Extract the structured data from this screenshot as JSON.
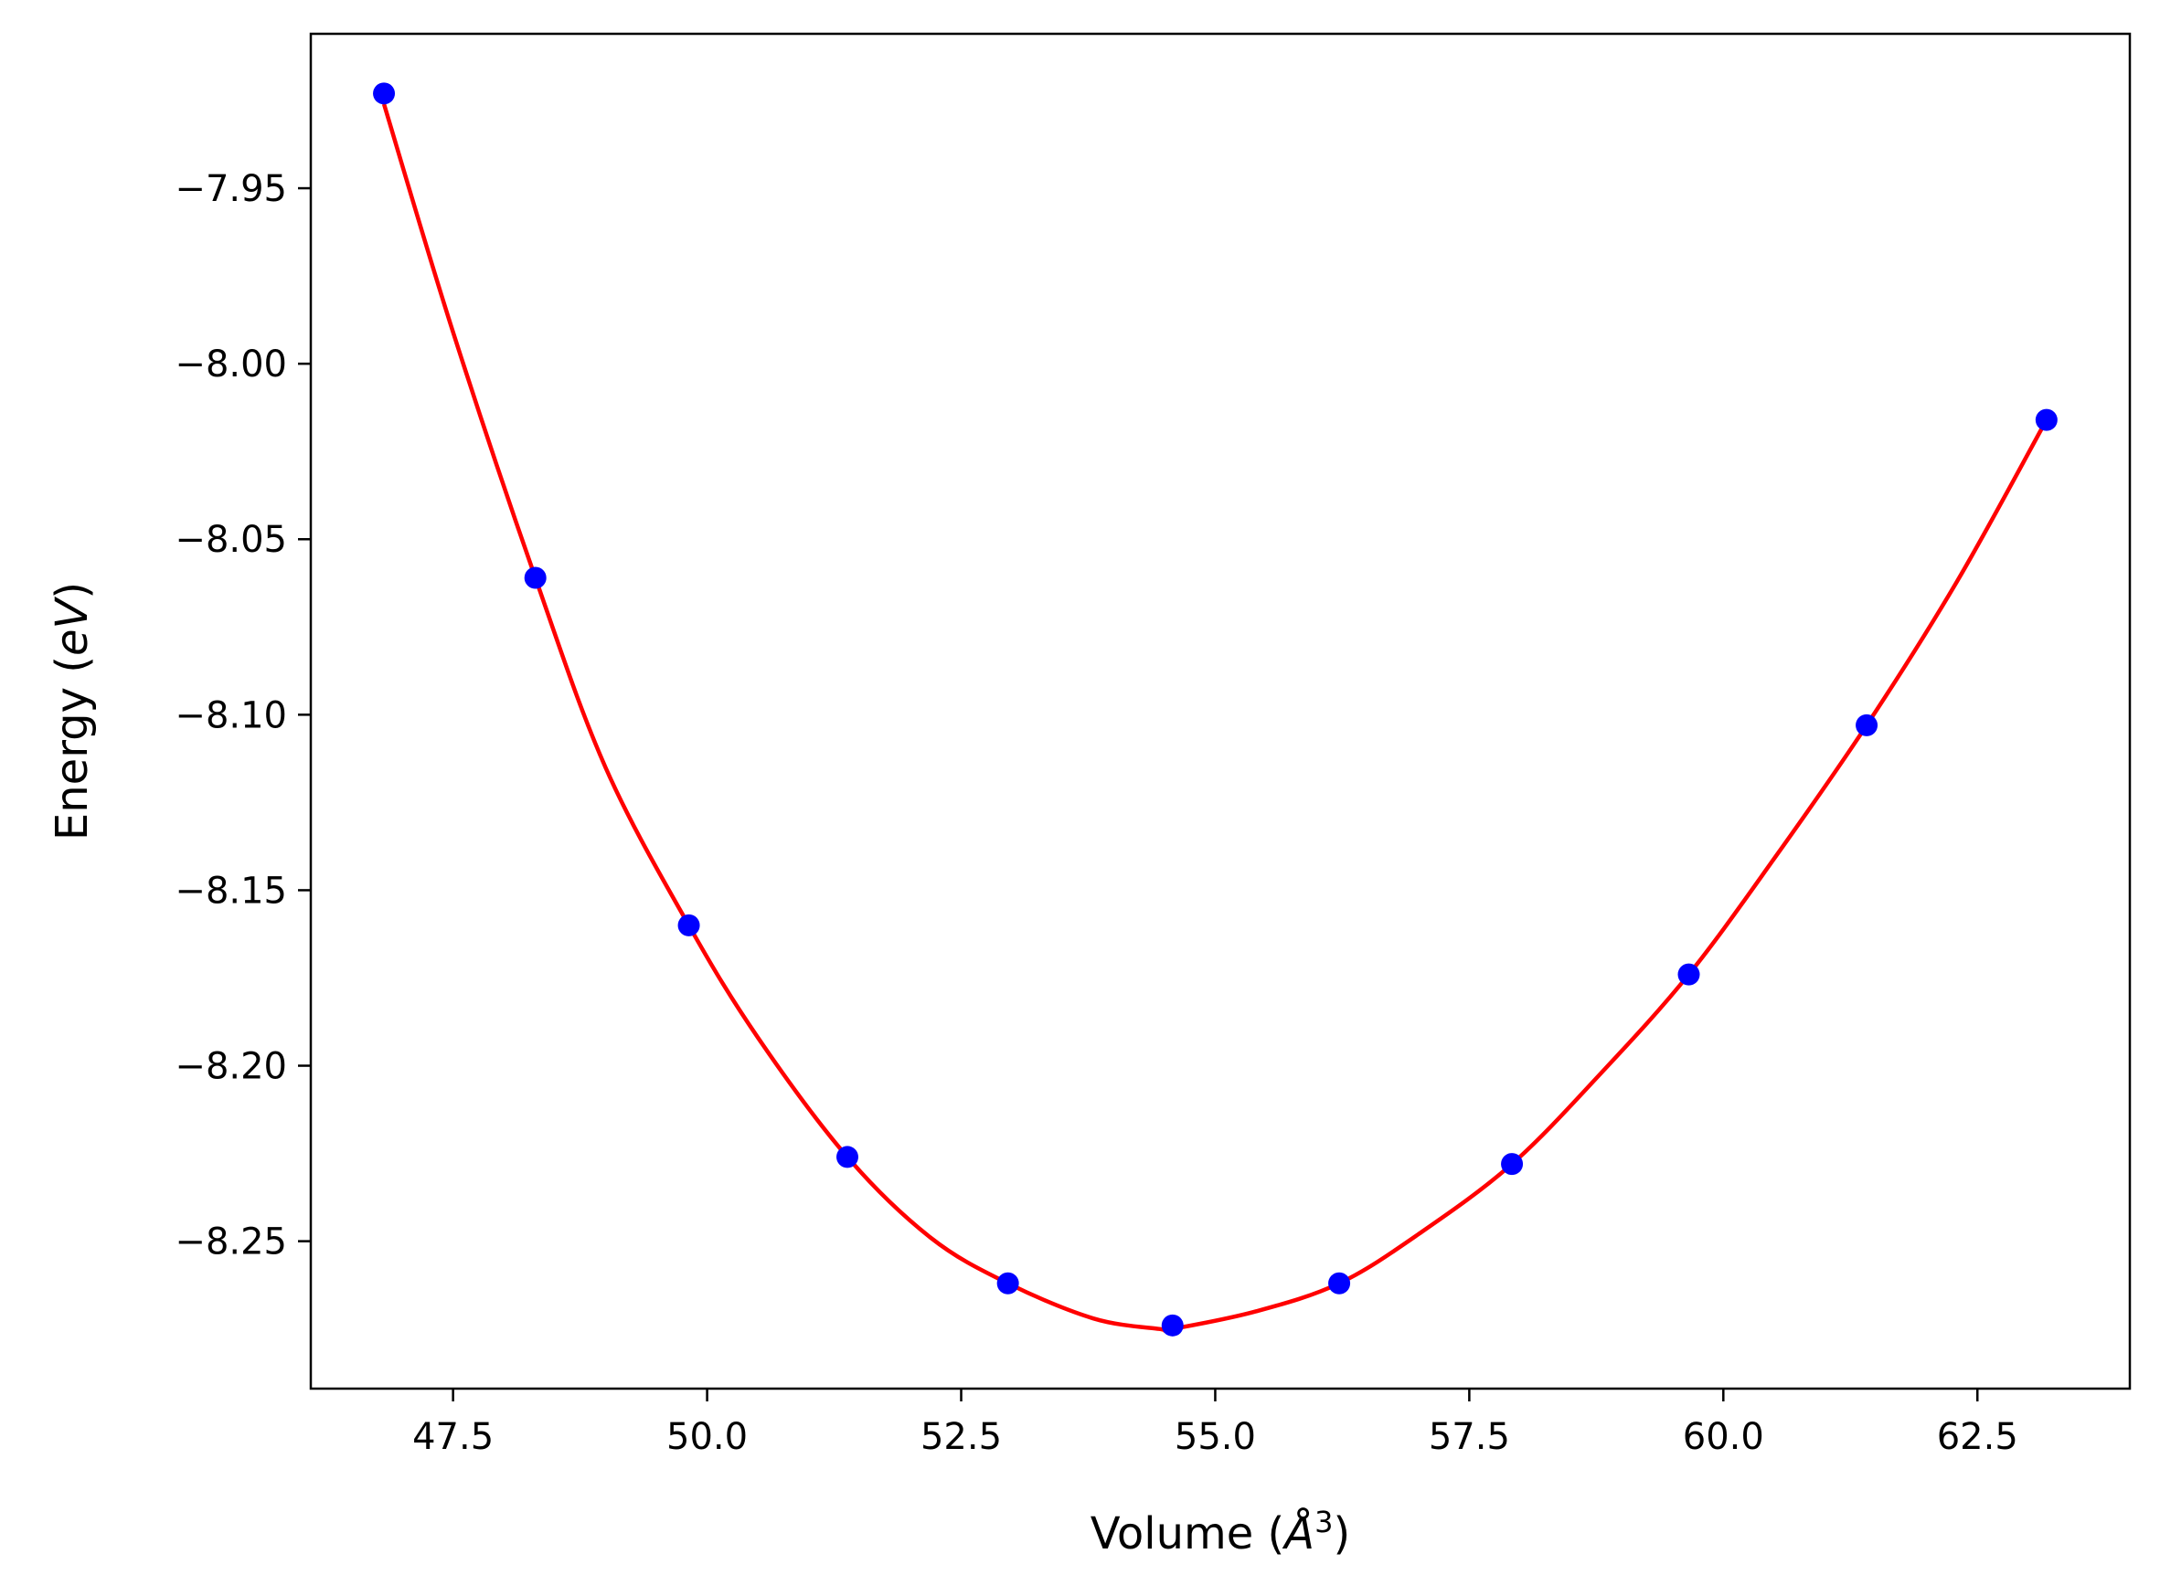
{
  "chart_data": {
    "type": "scatter",
    "title": "",
    "xlabel": "Volume",
    "xlabel_unit_symbol": "Å",
    "xlabel_unit_power": "3",
    "ylabel": "Energy",
    "ylabel_unit": "eV",
    "xlim": [
      46.1,
      64.0
    ],
    "ylim": [
      -8.292,
      -7.906
    ],
    "xticks": [
      47.5,
      50.0,
      52.5,
      55.0,
      57.5,
      60.0,
      62.5
    ],
    "xtick_labels": [
      "47.5",
      "50.0",
      "52.5",
      "55.0",
      "57.5",
      "60.0",
      "62.5"
    ],
    "yticks": [
      -7.95,
      -8.0,
      -8.05,
      -8.1,
      -8.15,
      -8.2,
      -8.25
    ],
    "ytick_labels": [
      "−7.95",
      "−8.00",
      "−8.05",
      "−8.10",
      "−8.15",
      "−8.20",
      "−8.25"
    ],
    "grid": false,
    "series": [
      {
        "kind": "points",
        "color": "#0000ff",
        "x": [
          46.82,
          48.31,
          49.82,
          51.38,
          52.96,
          54.58,
          56.22,
          57.92,
          59.66,
          61.41,
          63.18
        ],
        "y": [
          -7.923,
          -8.061,
          -8.16,
          -8.226,
          -8.262,
          -8.274,
          -8.262,
          -8.228,
          -8.174,
          -8.103,
          -8.016
        ]
      },
      {
        "kind": "fit-curve",
        "color": "#ff0000",
        "x": [
          46.82,
          47.5,
          48.31,
          49.0,
          49.82,
          50.5,
          51.38,
          52.2,
          52.96,
          53.8,
          54.45,
          54.58,
          55.4,
          56.22,
          57.0,
          57.92,
          58.8,
          59.66,
          60.5,
          61.41,
          62.3,
          63.18
        ],
        "y": [
          -7.926,
          -7.991,
          -8.061,
          -8.115,
          -8.16,
          -8.192,
          -8.226,
          -8.249,
          -8.262,
          -8.272,
          -8.275,
          -8.275,
          -8.27,
          -8.262,
          -8.248,
          -8.228,
          -8.202,
          -8.174,
          -8.141,
          -8.103,
          -8.062,
          -8.016
        ]
      }
    ]
  }
}
